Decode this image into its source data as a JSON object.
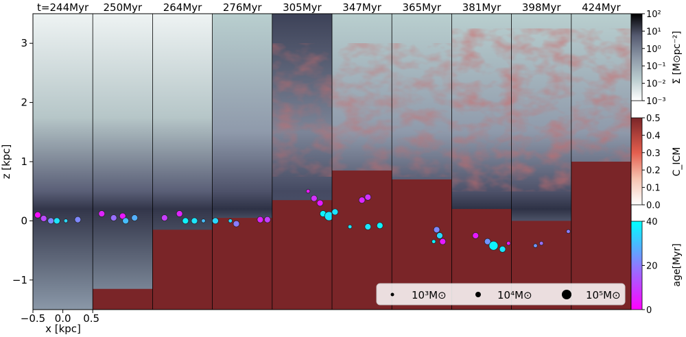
{
  "chart_data": {
    "type": "scatter",
    "panels": [
      {
        "time_label": "t=244Myr",
        "icm_front_z": null,
        "stars": [
          {
            "x": -0.42,
            "z": 0.1,
            "mass": 10000.0,
            "age": 2
          },
          {
            "x": -0.32,
            "z": 0.04,
            "mass": 10000.0,
            "age": 12
          },
          {
            "x": -0.2,
            "z": 0.0,
            "mass": 10000.0,
            "age": 22
          },
          {
            "x": -0.1,
            "z": 0.0,
            "mass": 10000.0,
            "age": 36
          },
          {
            "x": 0.05,
            "z": 0.0,
            "mass": 1000.0,
            "age": 34
          },
          {
            "x": 0.25,
            "z": 0.02,
            "mass": 10000.0,
            "age": 22
          }
        ]
      },
      {
        "time_label": "250Myr",
        "icm_front_z": -1.15,
        "stars": [
          {
            "x": -0.35,
            "z": 0.12,
            "mass": 10000.0,
            "age": 6
          },
          {
            "x": -0.15,
            "z": 0.05,
            "mass": 10000.0,
            "age": 18
          },
          {
            "x": 0.0,
            "z": 0.08,
            "mass": 10000.0,
            "age": 4
          },
          {
            "x": 0.05,
            "z": 0.0,
            "mass": 10000.0,
            "age": 30
          },
          {
            "x": 0.2,
            "z": 0.05,
            "mass": 10000.0,
            "age": 28
          }
        ]
      },
      {
        "time_label": "264Myr",
        "icm_front_z": -0.15,
        "stars": [
          {
            "x": -0.3,
            "z": 0.05,
            "mass": 10000.0,
            "age": 10
          },
          {
            "x": -0.05,
            "z": 0.12,
            "mass": 10000.0,
            "age": 6
          },
          {
            "x": 0.05,
            "z": 0.0,
            "mass": 10000.0,
            "age": 38
          },
          {
            "x": 0.2,
            "z": 0.0,
            "mass": 10000.0,
            "age": 36
          },
          {
            "x": 0.35,
            "z": 0.0,
            "mass": 1000.0,
            "age": 30
          }
        ]
      },
      {
        "time_label": "276Myr",
        "icm_front_z": 0.05,
        "stars": [
          {
            "x": -0.45,
            "z": 0.0,
            "mass": 10000.0,
            "age": 34
          },
          {
            "x": -0.2,
            "z": 0.0,
            "mass": 1000.0,
            "age": 34
          },
          {
            "x": -0.1,
            "z": -0.05,
            "mass": 10000.0,
            "age": 20
          },
          {
            "x": 0.3,
            "z": 0.02,
            "mass": 10000.0,
            "age": 6
          },
          {
            "x": 0.42,
            "z": 0.02,
            "mass": 10000.0,
            "age": 10
          }
        ]
      },
      {
        "time_label": "305Myr",
        "icm_front_z": 0.35,
        "stars": [
          {
            "x": 0.1,
            "z": 0.5,
            "mass": 1000.0,
            "age": 4
          },
          {
            "x": 0.35,
            "z": 0.12,
            "mass": 10000.0,
            "age": 38
          },
          {
            "x": 0.45,
            "z": 0.08,
            "mass": 100000.0,
            "age": 36
          },
          {
            "x": 0.2,
            "z": 0.38,
            "mass": 10000.0,
            "age": 8
          },
          {
            "x": 0.3,
            "z": 0.3,
            "mass": 10000.0,
            "age": 4
          }
        ]
      },
      {
        "time_label": "347Myr",
        "icm_front_z": 0.85,
        "stars": [
          {
            "x": -0.45,
            "z": 0.15,
            "mass": 10000.0,
            "age": 36
          },
          {
            "x": -0.2,
            "z": -0.1,
            "mass": 1000.0,
            "age": 36
          },
          {
            "x": 0.1,
            "z": -0.1,
            "mass": 10000.0,
            "age": 36
          },
          {
            "x": 0.3,
            "z": -0.08,
            "mass": 10000.0,
            "age": 38
          },
          {
            "x": 0.0,
            "z": 0.35,
            "mass": 10000.0,
            "age": 6
          },
          {
            "x": 0.1,
            "z": 0.4,
            "mass": 10000.0,
            "age": 8
          }
        ]
      },
      {
        "time_label": "365Myr",
        "icm_front_z": 0.7,
        "stars": [
          {
            "x": 0.25,
            "z": -0.15,
            "mass": 10000.0,
            "age": 22
          },
          {
            "x": 0.3,
            "z": -0.25,
            "mass": 10000.0,
            "age": 34
          },
          {
            "x": 0.35,
            "z": -0.35,
            "mass": 10000.0,
            "age": 4
          },
          {
            "x": 0.2,
            "z": -0.35,
            "mass": 1000.0,
            "age": 38
          }
        ]
      },
      {
        "time_label": "381Myr",
        "icm_front_z": 0.2,
        "stars": [
          {
            "x": -0.1,
            "z": -0.25,
            "mass": 10000.0,
            "age": 4
          },
          {
            "x": 0.1,
            "z": -0.35,
            "mass": 10000.0,
            "age": 24
          },
          {
            "x": 0.2,
            "z": -0.42,
            "mass": 100000.0,
            "age": 38
          },
          {
            "x": 0.35,
            "z": -0.48,
            "mass": 10000.0,
            "age": 36
          },
          {
            "x": 0.45,
            "z": -0.38,
            "mass": 1000.0,
            "age": 4
          }
        ]
      },
      {
        "time_label": "398Myr",
        "icm_front_z": 0.0,
        "stars": [
          {
            "x": -0.1,
            "z": -0.42,
            "mass": 1000.0,
            "age": 24
          },
          {
            "x": 0.0,
            "z": -0.38,
            "mass": 1000.0,
            "age": 18
          },
          {
            "x": 0.45,
            "z": -0.18,
            "mass": 1000.0,
            "age": 20
          }
        ]
      },
      {
        "time_label": "424Myr",
        "icm_front_z": 1.0,
        "stars": []
      }
    ],
    "x_ticks": [
      "−0.5",
      "0.0",
      "0.5"
    ],
    "x_tick_values": [
      -0.5,
      0.0,
      0.5
    ],
    "xlim": [
      -0.5,
      0.5
    ],
    "xlabel": "x [kpc]",
    "ylabel": "z [kpc]",
    "ylim": [
      -1.5,
      3.5
    ],
    "y_ticks": [
      "−1",
      "0",
      "1",
      "2",
      "3"
    ],
    "y_tick_values": [
      -1,
      0,
      1,
      2,
      3
    ],
    "colorbars": [
      {
        "name": "surface_density",
        "label": "Σ [M⊙pc⁻²]",
        "ticks": [
          "10⁻³",
          "10⁻²",
          "10⁻¹",
          "10⁰",
          "10¹",
          "10²"
        ],
        "range": [
          -3,
          2
        ],
        "scale": "log",
        "colors": [
          "#ffffff",
          "#b9ccce",
          "#8c97a6",
          "#555a70",
          "#000000"
        ]
      },
      {
        "name": "icm_fraction",
        "label": "C_ICM",
        "ticks": [
          "0.0",
          "0.1",
          "0.2",
          "0.3",
          "0.4",
          "0.5"
        ],
        "range": [
          0.0,
          0.5
        ],
        "scale": "linear",
        "colors": [
          "#ffffff",
          "#f6c3b0",
          "#e45e4e",
          "#7a2528"
        ]
      },
      {
        "name": "stellar_age",
        "label": "age[Myr]",
        "ticks": [
          "0",
          "20",
          "40"
        ],
        "range": [
          0,
          40
        ],
        "scale": "linear",
        "colors": [
          "#ff00ff",
          "#8c7bff",
          "#00ffff"
        ]
      }
    ],
    "legend": {
      "placement": "bottom-right",
      "entries": [
        {
          "text": "10³M⊙",
          "mass": 1000.0
        },
        {
          "text": "10⁴M⊙",
          "mass": 10000.0
        },
        {
          "text": "10⁵M⊙",
          "mass": 100000.0
        }
      ]
    }
  }
}
